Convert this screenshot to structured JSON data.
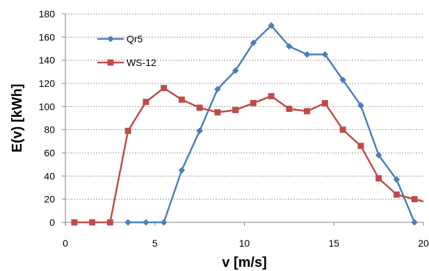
{
  "chart_data": {
    "type": "line",
    "title": "",
    "xlabel": "v [m/s]",
    "ylabel": "E(v) [kWh]",
    "xlim": [
      0,
      20
    ],
    "ylim": [
      0,
      180
    ],
    "x_ticks": [
      "0",
      "5",
      "10",
      "15",
      "20"
    ],
    "y_ticks": [
      "0",
      "20",
      "40",
      "60",
      "80",
      "100",
      "120",
      "140",
      "160",
      "180"
    ],
    "grid": "horizontal dashed",
    "legend_position": "top-left",
    "series": [
      {
        "name": "Qr5",
        "color": "#4a7ebb",
        "marker": "diamond",
        "x": [
          3.5,
          4.5,
          5.5,
          6.5,
          7.5,
          8.5,
          9.5,
          10.5,
          11.5,
          12.5,
          13.5,
          14.5,
          15.5,
          16.5,
          17.5,
          18.5,
          19.5
        ],
        "y": [
          0,
          0,
          0,
          45,
          79,
          115,
          131,
          155,
          170,
          152,
          145,
          145,
          123,
          101,
          58,
          37,
          0
        ]
      },
      {
        "name": "WS-12",
        "color": "#be4b48",
        "marker": "square",
        "x": [
          0.5,
          1.5,
          2.5,
          3.5,
          4.5,
          5.5,
          6.5,
          7.5,
          8.5,
          9.5,
          10.5,
          11.5,
          12.5,
          13.5,
          14.5,
          15.5,
          16.5,
          17.5,
          18.5,
          19.5,
          20
        ],
        "y": [
          0,
          0,
          0,
          79,
          104,
          116,
          106,
          99,
          95,
          97,
          103,
          109,
          98,
          96,
          103,
          80,
          66,
          38,
          24,
          20,
          18
        ],
        "marker_mask": [
          1,
          1,
          1,
          1,
          1,
          1,
          1,
          1,
          1,
          1,
          1,
          1,
          1,
          1,
          1,
          1,
          1,
          1,
          1,
          1,
          0
        ]
      }
    ]
  }
}
